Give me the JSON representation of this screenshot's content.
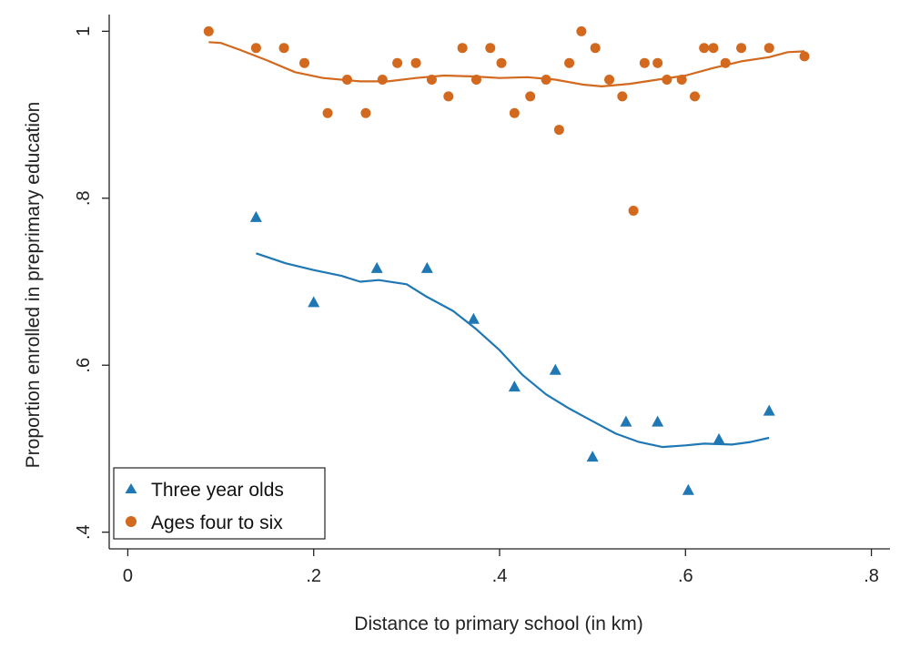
{
  "chart_data": {
    "type": "scatter",
    "xlabel": "Distance to primary school (in km)",
    "ylabel": "Proportion enrolled in preprimary education",
    "xlim": [
      -0.02,
      0.82
    ],
    "ylim": [
      0.38,
      1.02
    ],
    "xticks": [
      0,
      0.2,
      0.4,
      0.6,
      0.8
    ],
    "xtick_labels": [
      "0",
      ".2",
      ".4",
      ".6",
      ".8"
    ],
    "yticks": [
      0.4,
      0.6,
      0.8,
      1.0
    ],
    "ytick_labels": [
      ".4",
      ".6",
      ".8",
      "1"
    ],
    "grid": false,
    "legend_position": "bottom-left",
    "series": [
      {
        "name": "Three year olds",
        "marker": "triangle",
        "color": "#1f77b4",
        "points": [
          [
            0.138,
            0.777
          ],
          [
            0.2,
            0.675
          ],
          [
            0.268,
            0.716
          ],
          [
            0.322,
            0.716
          ],
          [
            0.372,
            0.655
          ],
          [
            0.416,
            0.574
          ],
          [
            0.46,
            0.594
          ],
          [
            0.5,
            0.49
          ],
          [
            0.536,
            0.532
          ],
          [
            0.57,
            0.532
          ],
          [
            0.603,
            0.45
          ],
          [
            0.636,
            0.511
          ],
          [
            0.69,
            0.545
          ]
        ],
        "fit": [
          [
            0.138,
            0.734
          ],
          [
            0.17,
            0.722
          ],
          [
            0.2,
            0.714
          ],
          [
            0.23,
            0.707
          ],
          [
            0.25,
            0.7
          ],
          [
            0.27,
            0.702
          ],
          [
            0.3,
            0.697
          ],
          [
            0.32,
            0.683
          ],
          [
            0.35,
            0.665
          ],
          [
            0.375,
            0.643
          ],
          [
            0.4,
            0.618
          ],
          [
            0.425,
            0.588
          ],
          [
            0.45,
            0.565
          ],
          [
            0.475,
            0.548
          ],
          [
            0.5,
            0.533
          ],
          [
            0.525,
            0.518
          ],
          [
            0.55,
            0.508
          ],
          [
            0.575,
            0.502
          ],
          [
            0.6,
            0.504
          ],
          [
            0.62,
            0.506
          ],
          [
            0.65,
            0.505
          ],
          [
            0.67,
            0.508
          ],
          [
            0.69,
            0.513
          ]
        ]
      },
      {
        "name": "Ages four to six",
        "marker": "circle",
        "color": "#d2691e",
        "points": [
          [
            0.087,
            1.0
          ],
          [
            0.138,
            0.98
          ],
          [
            0.168,
            0.98
          ],
          [
            0.19,
            0.962
          ],
          [
            0.215,
            0.902
          ],
          [
            0.236,
            0.942
          ],
          [
            0.256,
            0.902
          ],
          [
            0.274,
            0.942
          ],
          [
            0.29,
            0.962
          ],
          [
            0.31,
            0.962
          ],
          [
            0.327,
            0.942
          ],
          [
            0.345,
            0.922
          ],
          [
            0.36,
            0.98
          ],
          [
            0.375,
            0.942
          ],
          [
            0.39,
            0.98
          ],
          [
            0.402,
            0.962
          ],
          [
            0.416,
            0.902
          ],
          [
            0.433,
            0.922
          ],
          [
            0.45,
            0.942
          ],
          [
            0.464,
            0.882
          ],
          [
            0.475,
            0.962
          ],
          [
            0.488,
            1.0
          ],
          [
            0.503,
            0.98
          ],
          [
            0.518,
            0.942
          ],
          [
            0.532,
            0.922
          ],
          [
            0.544,
            0.785
          ],
          [
            0.556,
            0.962
          ],
          [
            0.57,
            0.962
          ],
          [
            0.58,
            0.942
          ],
          [
            0.596,
            0.942
          ],
          [
            0.61,
            0.922
          ],
          [
            0.62,
            0.98
          ],
          [
            0.63,
            0.98
          ],
          [
            0.643,
            0.962
          ],
          [
            0.66,
            0.98
          ],
          [
            0.69,
            0.98
          ],
          [
            0.728,
            0.97
          ]
        ],
        "fit": [
          [
            0.087,
            0.987
          ],
          [
            0.1,
            0.986
          ],
          [
            0.12,
            0.978
          ],
          [
            0.15,
            0.965
          ],
          [
            0.18,
            0.951
          ],
          [
            0.21,
            0.944
          ],
          [
            0.25,
            0.94
          ],
          [
            0.28,
            0.94
          ],
          [
            0.31,
            0.944
          ],
          [
            0.34,
            0.947
          ],
          [
            0.37,
            0.946
          ],
          [
            0.4,
            0.944
          ],
          [
            0.43,
            0.945
          ],
          [
            0.46,
            0.942
          ],
          [
            0.49,
            0.936
          ],
          [
            0.51,
            0.934
          ],
          [
            0.54,
            0.937
          ],
          [
            0.57,
            0.942
          ],
          [
            0.6,
            0.947
          ],
          [
            0.63,
            0.956
          ],
          [
            0.66,
            0.964
          ],
          [
            0.69,
            0.969
          ],
          [
            0.71,
            0.975
          ],
          [
            0.728,
            0.976
          ]
        ]
      }
    ]
  }
}
